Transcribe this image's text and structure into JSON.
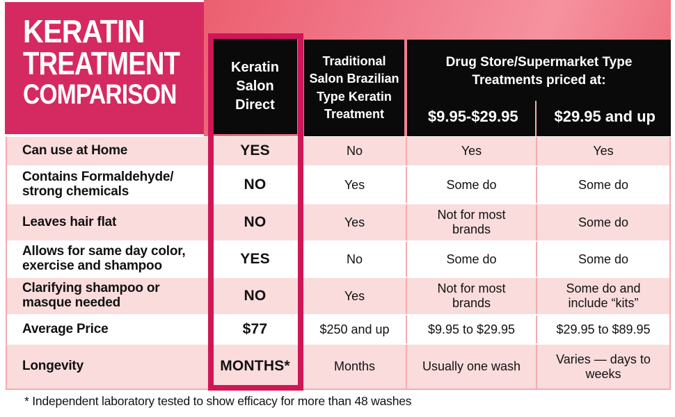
{
  "title": {
    "line1": "KERATIN",
    "line2": "TREATMENT",
    "line3": "COMPARISON"
  },
  "columns": {
    "keratin": "Keratin Salon Direct",
    "traditional": "Traditional Salon Brazilian Type Keratin Treatment",
    "drugstore_group": "Drug Store/Supermarket Type Treatments priced at:",
    "drugstore_low": "$9.95-$29.95",
    "drugstore_high": "$29.95 and up"
  },
  "rows": [
    {
      "feature": "Can use at Home",
      "keratin": "YES",
      "traditional": "No",
      "low": "Yes",
      "high": "Yes"
    },
    {
      "feature": "Contains Formaldehyde/ strong chemicals",
      "keratin": "NO",
      "traditional": "Yes",
      "low": "Some do",
      "high": "Some do"
    },
    {
      "feature": "Leaves hair flat",
      "keratin": "NO",
      "traditional": "Yes",
      "low": "Not for most brands",
      "high": "Some do"
    },
    {
      "feature": "Allows for same day color, exercise and shampoo",
      "keratin": "YES",
      "traditional": "No",
      "low": "Some do",
      "high": "Some do"
    },
    {
      "feature": "Clarifying shampoo or masque needed",
      "keratin": "NO",
      "traditional": "Yes",
      "low": "Not for most brands",
      "high": "Some do and include “kits”"
    },
    {
      "feature": "Average Price",
      "keratin": "$77",
      "traditional": "$250 and up",
      "low": "$9.95 to $29.95",
      "high": "$29.95 to $89.95"
    },
    {
      "feature": "Longevity",
      "keratin": "MONTHS*",
      "traditional": "Months",
      "low": "Usually one wash",
      "high": "Varies — days to weeks"
    }
  ],
  "footnote": "* Independent laboratory tested to show efficacy for more than 48 washes",
  "colors": {
    "title_background": "#d52a61",
    "highlight_border": "#ce1757",
    "header_band_coral": "#ee6b7a",
    "row_pink": "#fadcdc",
    "separator_salmon": "#f3abaf",
    "header_box_black": "#0a0a0a",
    "text_black": "#111111",
    "text_white": "#ffffff"
  }
}
